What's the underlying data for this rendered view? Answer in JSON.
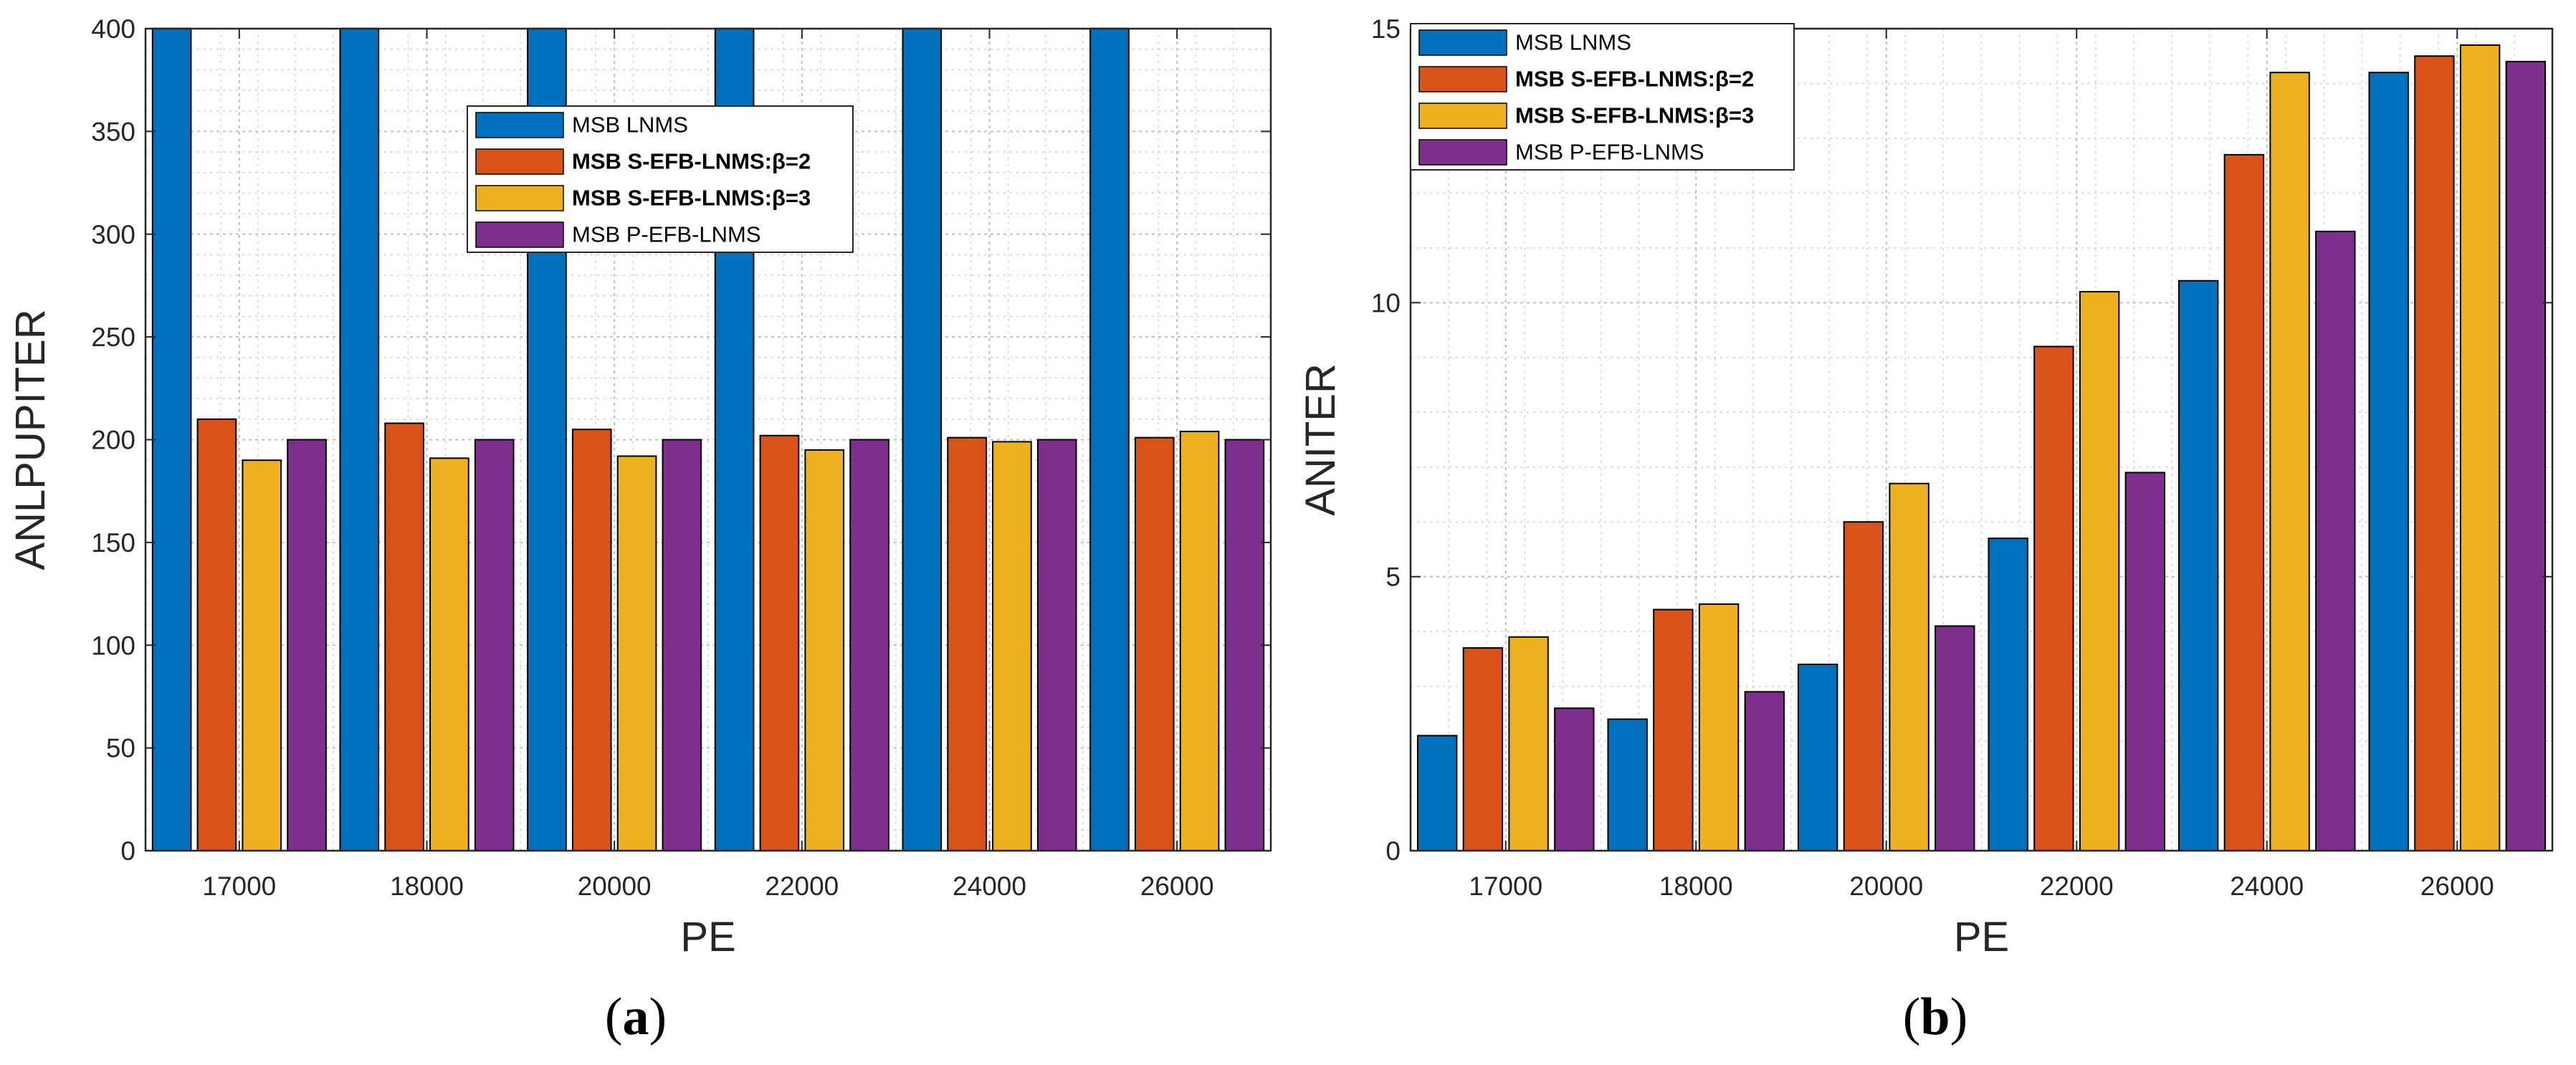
{
  "chart_data": [
    {
      "type": "bar",
      "panel_label": "a",
      "title": "",
      "xlabel": "PE",
      "ylabel": "ANLPUPITER",
      "categories": [
        "17000",
        "18000",
        "20000",
        "22000",
        "24000",
        "26000"
      ],
      "ylim": [
        0,
        400
      ],
      "yticks": [
        "0",
        "50",
        "100",
        "150",
        "200",
        "250",
        "300",
        "350",
        "400"
      ],
      "grid": true,
      "legend_position": "top-center",
      "series": [
        {
          "name": "MSB LNMS",
          "bold": false,
          "color": "#0072BD",
          "values": [
            400,
            400,
            400,
            400,
            400,
            400
          ]
        },
        {
          "name": "MSB S-EFB-LNMS:β=2",
          "bold": true,
          "color": "#D95319",
          "values": [
            210,
            208,
            205,
            202,
            201,
            201
          ]
        },
        {
          "name": "MSB S-EFB-LNMS:β=3",
          "bold": true,
          "color": "#EDB120",
          "values": [
            190,
            191,
            192,
            195,
            199,
            204
          ]
        },
        {
          "name": "MSB P-EFB-LNMS",
          "bold": false,
          "color": "#7E2F8E",
          "values": [
            200,
            200,
            200,
            200,
            200,
            200
          ]
        }
      ]
    },
    {
      "type": "bar",
      "panel_label": "b",
      "title": "",
      "xlabel": "PE",
      "ylabel": "ANITER",
      "categories": [
        "17000",
        "18000",
        "20000",
        "22000",
        "24000",
        "26000"
      ],
      "ylim": [
        0,
        15
      ],
      "yticks": [
        "0",
        "5",
        "10",
        "15"
      ],
      "grid": true,
      "legend_position": "top-left",
      "series": [
        {
          "name": "MSB LNMS",
          "bold": false,
          "color": "#0072BD",
          "values": [
            2.1,
            2.4,
            3.4,
            5.7,
            10.4,
            14.2
          ]
        },
        {
          "name": "MSB S-EFB-LNMS:β=2",
          "bold": true,
          "color": "#D95319",
          "values": [
            3.7,
            4.4,
            6.0,
            9.2,
            12.7,
            14.5
          ]
        },
        {
          "name": "MSB S-EFB-LNMS:β=3",
          "bold": true,
          "color": "#EDB120",
          "values": [
            3.9,
            4.5,
            6.7,
            10.2,
            14.2,
            14.7
          ]
        },
        {
          "name": "MSB P-EFB-LNMS",
          "bold": false,
          "color": "#7E2F8E",
          "values": [
            2.6,
            2.9,
            4.1,
            6.9,
            11.3,
            14.4
          ]
        }
      ]
    }
  ]
}
